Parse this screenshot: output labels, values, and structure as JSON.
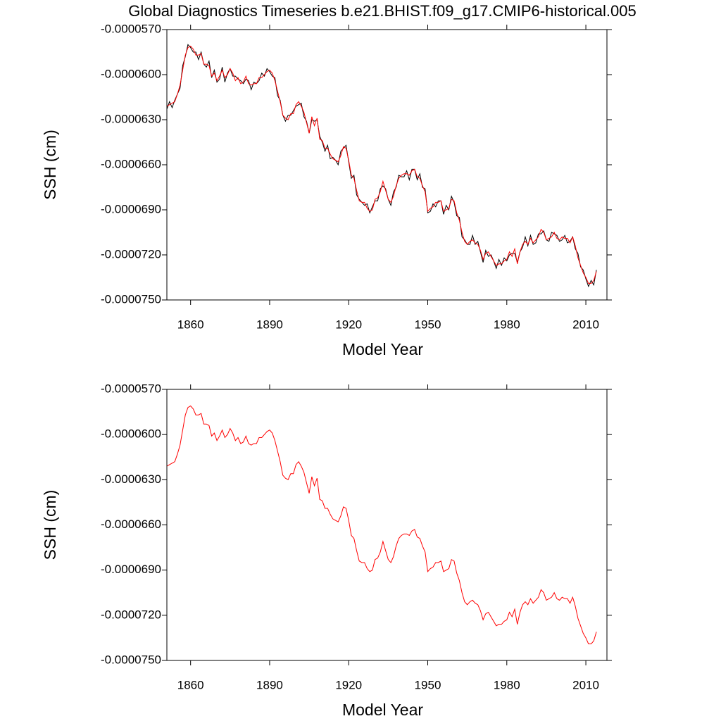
{
  "chart_data": [
    {
      "type": "line",
      "title": "Global Diagnostics Timeseries b.e21.BHIST.f09_g17.CMIP6-historical.005",
      "xlabel": "Model Year",
      "ylabel": "SSH (cm)",
      "xlim": [
        1851,
        2018
      ],
      "xticks": [
        1860,
        1890,
        1920,
        1950,
        1980,
        2010
      ],
      "ylim": [
        -7.5e-05,
        -5.7e-05
      ],
      "yticks": [
        {
          "value": -7.5e-05,
          "label": "-0.0000750"
        },
        {
          "value": -7.2e-05,
          "label": "-0.0000720"
        },
        {
          "value": -6.9e-05,
          "label": "-0.0000690"
        },
        {
          "value": -6.6e-05,
          "label": "-0.0000660"
        },
        {
          "value": -6.3e-05,
          "label": "-0.0000630"
        },
        {
          "value": -6e-05,
          "label": "-0.0000600"
        },
        {
          "value": -5.7e-05,
          "label": "-0.0000570"
        }
      ],
      "x": [
        1851,
        1852,
        1853,
        1854,
        1855,
        1856,
        1857,
        1858,
        1859,
        1860,
        1861,
        1862,
        1863,
        1864,
        1865,
        1866,
        1867,
        1868,
        1869,
        1870,
        1871,
        1872,
        1873,
        1874,
        1875,
        1876,
        1877,
        1878,
        1879,
        1880,
        1881,
        1882,
        1883,
        1884,
        1885,
        1886,
        1887,
        1888,
        1889,
        1890,
        1891,
        1892,
        1893,
        1894,
        1895,
        1896,
        1897,
        1898,
        1899,
        1900,
        1901,
        1902,
        1903,
        1904,
        1905,
        1906,
        1907,
        1908,
        1909,
        1910,
        1911,
        1912,
        1913,
        1914,
        1915,
        1916,
        1917,
        1918,
        1919,
        1920,
        1921,
        1922,
        1923,
        1924,
        1925,
        1926,
        1927,
        1928,
        1929,
        1930,
        1931,
        1932,
        1933,
        1934,
        1935,
        1936,
        1937,
        1938,
        1939,
        1940,
        1941,
        1942,
        1943,
        1944,
        1945,
        1946,
        1947,
        1948,
        1949,
        1950,
        1951,
        1952,
        1953,
        1954,
        1955,
        1956,
        1957,
        1958,
        1959,
        1960,
        1961,
        1962,
        1963,
        1964,
        1965,
        1966,
        1967,
        1968,
        1969,
        1970,
        1971,
        1972,
        1973,
        1974,
        1975,
        1976,
        1977,
        1978,
        1979,
        1980,
        1981,
        1982,
        1983,
        1984,
        1985,
        1986,
        1987,
        1988,
        1989,
        1990,
        1991,
        1992,
        1993,
        1994,
        1995,
        1996,
        1997,
        1998,
        1999,
        2000,
        2001,
        2002,
        2003,
        2004,
        2005,
        2006,
        2007,
        2008,
        2009,
        2010,
        2011,
        2012,
        2013,
        2014
      ],
      "series": [
        {
          "color": "#000000",
          "values": [
            -6.23e-05,
            -6.18e-05,
            -6.22e-05,
            -6.17e-05,
            -6.13e-05,
            -6.09e-05,
            -5.94e-05,
            -5.88e-05,
            -5.8e-05,
            -5.82e-05,
            -5.85e-05,
            -5.85e-05,
            -5.9e-05,
            -5.85e-05,
            -5.93e-05,
            -5.95e-05,
            -5.91e-05,
            -6.02e-05,
            -5.97e-05,
            -6.05e-05,
            -6.03e-05,
            -5.95e-05,
            -6.05e-05,
            -5.99e-05,
            -5.96e-05,
            -6.01e-05,
            -6.01e-05,
            -6.03e-05,
            -6.04e-05,
            -6.06e-05,
            -6.03e-05,
            -6.04e-05,
            -6.1e-05,
            -6.05e-05,
            -6.06e-05,
            -6.04e-05,
            -5.99e-05,
            -6.01e-05,
            -5.96e-05,
            -5.98e-05,
            -6.01e-05,
            -6.02e-05,
            -6.14e-05,
            -6.17e-05,
            -6.27e-05,
            -6.31e-05,
            -6.27e-05,
            -6.27e-05,
            -6.24e-05,
            -6.21e-05,
            -6.2e-05,
            -6.19e-05,
            -6.28e-05,
            -6.31e-05,
            -6.39e-05,
            -6.3e-05,
            -6.31e-05,
            -6.3e-05,
            -6.41e-05,
            -6.45e-05,
            -6.51e-05,
            -6.47e-05,
            -6.56e-05,
            -6.55e-05,
            -6.57e-05,
            -6.6e-05,
            -6.51e-05,
            -6.49e-05,
            -6.47e-05,
            -6.58e-05,
            -6.69e-05,
            -6.67e-05,
            -6.8e-05,
            -6.83e-05,
            -6.85e-05,
            -6.87e-05,
            -6.86e-05,
            -6.92e-05,
            -6.88e-05,
            -6.84e-05,
            -6.84e-05,
            -6.76e-05,
            -6.74e-05,
            -6.76e-05,
            -6.83e-05,
            -6.87e-05,
            -6.78e-05,
            -6.75e-05,
            -6.67e-05,
            -6.68e-05,
            -6.68e-05,
            -6.64e-05,
            -6.7e-05,
            -6.63e-05,
            -6.63e-05,
            -6.7e-05,
            -6.66e-05,
            -6.75e-05,
            -6.76e-05,
            -6.92e-05,
            -6.91e-05,
            -6.86e-05,
            -6.88e-05,
            -6.84e-05,
            -6.84e-05,
            -6.93e-05,
            -6.87e-05,
            -6.9e-05,
            -6.81e-05,
            -6.85e-05,
            -6.94e-05,
            -6.95e-05,
            -7.08e-05,
            -7.1e-05,
            -7.13e-05,
            -7.13e-05,
            -7.07e-05,
            -7.13e-05,
            -7.11e-05,
            -7.18e-05,
            -7.25e-05,
            -7.17e-05,
            -7.21e-05,
            -7.2e-05,
            -7.24e-05,
            -7.29e-05,
            -7.23e-05,
            -7.27e-05,
            -7.22e-05,
            -7.24e-05,
            -7.2e-05,
            -7.19e-05,
            -7.19e-05,
            -7.25e-05,
            -7.18e-05,
            -7.15e-05,
            -7.08e-05,
            -7.14e-05,
            -7.07e-05,
            -7.13e-05,
            -7.12e-05,
            -7.06e-05,
            -7.06e-05,
            -7.04e-05,
            -7.1e-05,
            -7.11e-05,
            -7.05e-05,
            -7.06e-05,
            -7.07e-05,
            -7.11e-05,
            -7.1e-05,
            -7.07e-05,
            -7.12e-05,
            -7.11e-05,
            -7.08e-05,
            -7.16e-05,
            -7.19e-05,
            -7.28e-05,
            -7.3e-05,
            -7.36e-05,
            -7.41e-05,
            -7.37e-05,
            -7.4e-05,
            -7.3e-05
          ]
        },
        {
          "color": "#ff0000",
          "values": [
            -6.21e-05,
            -6.2e-05,
            -6.19e-05,
            -6.18e-05,
            -6.13e-05,
            -6.07e-05,
            -5.97e-05,
            -5.87e-05,
            -5.82e-05,
            -5.81e-05,
            -5.83e-05,
            -5.87e-05,
            -5.87e-05,
            -5.86e-05,
            -5.93e-05,
            -5.93e-05,
            -5.94e-05,
            -6.01e-05,
            -5.99e-05,
            -6.04e-05,
            -6.01e-05,
            -5.97e-05,
            -6.02e-05,
            -6e-05,
            -5.96e-05,
            -5.99e-05,
            -6.04e-05,
            -6.02e-05,
            -6.06e-05,
            -6.05e-05,
            -6.01e-05,
            -6.06e-05,
            -6.07e-05,
            -6.06e-05,
            -6.06e-05,
            -6.02e-05,
            -6.02e-05,
            -6e-05,
            -5.98e-05,
            -5.97e-05,
            -5.99e-05,
            -6.04e-05,
            -6.11e-05,
            -6.18e-05,
            -6.27e-05,
            -6.29e-05,
            -6.3e-05,
            -6.26e-05,
            -6.26e-05,
            -6.2e-05,
            -6.18e-05,
            -6.21e-05,
            -6.25e-05,
            -6.32e-05,
            -6.39e-05,
            -6.28e-05,
            -6.34e-05,
            -6.29e-05,
            -6.43e-05,
            -6.44e-05,
            -6.49e-05,
            -6.49e-05,
            -6.53e-05,
            -6.56e-05,
            -6.57e-05,
            -6.58e-05,
            -6.54e-05,
            -6.48e-05,
            -6.49e-05,
            -6.57e-05,
            -6.67e-05,
            -6.69e-05,
            -6.77e-05,
            -6.84e-05,
            -6.85e-05,
            -6.85e-05,
            -6.89e-05,
            -6.91e-05,
            -6.9e-05,
            -6.83e-05,
            -6.82e-05,
            -6.78e-05,
            -6.71e-05,
            -6.77e-05,
            -6.83e-05,
            -6.85e-05,
            -6.81e-05,
            -6.74e-05,
            -6.69e-05,
            -6.67e-05,
            -6.66e-05,
            -6.66e-05,
            -6.67e-05,
            -6.64e-05,
            -6.63e-05,
            -6.68e-05,
            -6.69e-05,
            -6.74e-05,
            -6.78e-05,
            -6.91e-05,
            -6.89e-05,
            -6.88e-05,
            -6.85e-05,
            -6.85e-05,
            -6.84e-05,
            -6.91e-05,
            -6.9e-05,
            -6.89e-05,
            -6.83e-05,
            -6.84e-05,
            -6.92e-05,
            -6.97e-05,
            -7.05e-05,
            -7.11e-05,
            -7.13e-05,
            -7.11e-05,
            -7.1e-05,
            -7.12e-05,
            -7.13e-05,
            -7.17e-05,
            -7.23e-05,
            -7.19e-05,
            -7.18e-05,
            -7.21e-05,
            -7.24e-05,
            -7.27e-05,
            -7.26e-05,
            -7.26e-05,
            -7.24e-05,
            -7.23e-05,
            -7.18e-05,
            -7.21e-05,
            -7.16e-05,
            -7.26e-05,
            -7.18e-05,
            -7.13e-05,
            -7.11e-05,
            -7.13e-05,
            -7.09e-05,
            -7.12e-05,
            -7.1e-05,
            -7.08e-05,
            -7.03e-05,
            -7.05e-05,
            -7.1e-05,
            -7.09e-05,
            -7.08e-05,
            -7.05e-05,
            -7.09e-05,
            -7.1e-05,
            -7.08e-05,
            -7.09e-05,
            -7.09e-05,
            -7.12e-05,
            -7.08e-05,
            -7.14e-05,
            -7.22e-05,
            -7.27e-05,
            -7.32e-05,
            -7.35e-05,
            -7.39e-05,
            -7.39e-05,
            -7.37e-05,
            -7.31e-05
          ]
        }
      ]
    },
    {
      "type": "line",
      "xlabel": "Model Year",
      "ylabel": "SSH (cm)",
      "xlim": [
        1851,
        2018
      ],
      "xticks": [
        1860,
        1890,
        1920,
        1950,
        1980,
        2010
      ],
      "ylim": [
        -7.5e-05,
        -5.7e-05
      ],
      "yticks": [
        {
          "value": -7.5e-05,
          "label": "-0.0000750"
        },
        {
          "value": -7.2e-05,
          "label": "-0.0000720"
        },
        {
          "value": -6.9e-05,
          "label": "-0.0000690"
        },
        {
          "value": -6.6e-05,
          "label": "-0.0000660"
        },
        {
          "value": -6.3e-05,
          "label": "-0.0000630"
        },
        {
          "value": -6e-05,
          "label": "-0.0000600"
        },
        {
          "value": -5.7e-05,
          "label": "-0.0000570"
        }
      ],
      "x": [
        1851,
        1852,
        1853,
        1854,
        1855,
        1856,
        1857,
        1858,
        1859,
        1860,
        1861,
        1862,
        1863,
        1864,
        1865,
        1866,
        1867,
        1868,
        1869,
        1870,
        1871,
        1872,
        1873,
        1874,
        1875,
        1876,
        1877,
        1878,
        1879,
        1880,
        1881,
        1882,
        1883,
        1884,
        1885,
        1886,
        1887,
        1888,
        1889,
        1890,
        1891,
        1892,
        1893,
        1894,
        1895,
        1896,
        1897,
        1898,
        1899,
        1900,
        1901,
        1902,
        1903,
        1904,
        1905,
        1906,
        1907,
        1908,
        1909,
        1910,
        1911,
        1912,
        1913,
        1914,
        1915,
        1916,
        1917,
        1918,
        1919,
        1920,
        1921,
        1922,
        1923,
        1924,
        1925,
        1926,
        1927,
        1928,
        1929,
        1930,
        1931,
        1932,
        1933,
        1934,
        1935,
        1936,
        1937,
        1938,
        1939,
        1940,
        1941,
        1942,
        1943,
        1944,
        1945,
        1946,
        1947,
        1948,
        1949,
        1950,
        1951,
        1952,
        1953,
        1954,
        1955,
        1956,
        1957,
        1958,
        1959,
        1960,
        1961,
        1962,
        1963,
        1964,
        1965,
        1966,
        1967,
        1968,
        1969,
        1970,
        1971,
        1972,
        1973,
        1974,
        1975,
        1976,
        1977,
        1978,
        1979,
        1980,
        1981,
        1982,
        1983,
        1984,
        1985,
        1986,
        1987,
        1988,
        1989,
        1990,
        1991,
        1992,
        1993,
        1994,
        1995,
        1996,
        1997,
        1998,
        1999,
        2000,
        2001,
        2002,
        2003,
        2004,
        2005,
        2006,
        2007,
        2008,
        2009,
        2010,
        2011,
        2012,
        2013,
        2014
      ],
      "series": [
        {
          "color": "#ff0000",
          "values": [
            -6.21e-05,
            -6.2e-05,
            -6.19e-05,
            -6.18e-05,
            -6.13e-05,
            -6.07e-05,
            -5.97e-05,
            -5.87e-05,
            -5.82e-05,
            -5.81e-05,
            -5.83e-05,
            -5.87e-05,
            -5.87e-05,
            -5.86e-05,
            -5.93e-05,
            -5.93e-05,
            -5.94e-05,
            -6.01e-05,
            -5.99e-05,
            -6.04e-05,
            -6.01e-05,
            -5.97e-05,
            -6.02e-05,
            -6e-05,
            -5.96e-05,
            -5.99e-05,
            -6.04e-05,
            -6.02e-05,
            -6.06e-05,
            -6.05e-05,
            -6.01e-05,
            -6.06e-05,
            -6.07e-05,
            -6.06e-05,
            -6.06e-05,
            -6.02e-05,
            -6.02e-05,
            -6e-05,
            -5.98e-05,
            -5.97e-05,
            -5.99e-05,
            -6.04e-05,
            -6.11e-05,
            -6.18e-05,
            -6.27e-05,
            -6.29e-05,
            -6.3e-05,
            -6.26e-05,
            -6.26e-05,
            -6.2e-05,
            -6.18e-05,
            -6.21e-05,
            -6.25e-05,
            -6.32e-05,
            -6.39e-05,
            -6.28e-05,
            -6.34e-05,
            -6.29e-05,
            -6.43e-05,
            -6.44e-05,
            -6.49e-05,
            -6.49e-05,
            -6.53e-05,
            -6.56e-05,
            -6.57e-05,
            -6.58e-05,
            -6.54e-05,
            -6.48e-05,
            -6.49e-05,
            -6.57e-05,
            -6.67e-05,
            -6.69e-05,
            -6.77e-05,
            -6.84e-05,
            -6.85e-05,
            -6.85e-05,
            -6.89e-05,
            -6.91e-05,
            -6.9e-05,
            -6.83e-05,
            -6.82e-05,
            -6.78e-05,
            -6.71e-05,
            -6.77e-05,
            -6.83e-05,
            -6.85e-05,
            -6.81e-05,
            -6.74e-05,
            -6.69e-05,
            -6.67e-05,
            -6.66e-05,
            -6.66e-05,
            -6.67e-05,
            -6.64e-05,
            -6.63e-05,
            -6.68e-05,
            -6.69e-05,
            -6.74e-05,
            -6.78e-05,
            -6.91e-05,
            -6.89e-05,
            -6.88e-05,
            -6.85e-05,
            -6.85e-05,
            -6.84e-05,
            -6.91e-05,
            -6.9e-05,
            -6.89e-05,
            -6.83e-05,
            -6.84e-05,
            -6.92e-05,
            -6.97e-05,
            -7.05e-05,
            -7.11e-05,
            -7.13e-05,
            -7.11e-05,
            -7.1e-05,
            -7.12e-05,
            -7.13e-05,
            -7.17e-05,
            -7.23e-05,
            -7.19e-05,
            -7.18e-05,
            -7.21e-05,
            -7.24e-05,
            -7.27e-05,
            -7.26e-05,
            -7.26e-05,
            -7.24e-05,
            -7.23e-05,
            -7.18e-05,
            -7.21e-05,
            -7.16e-05,
            -7.26e-05,
            -7.18e-05,
            -7.13e-05,
            -7.11e-05,
            -7.13e-05,
            -7.09e-05,
            -7.12e-05,
            -7.1e-05,
            -7.08e-05,
            -7.03e-05,
            -7.05e-05,
            -7.1e-05,
            -7.09e-05,
            -7.08e-05,
            -7.05e-05,
            -7.09e-05,
            -7.1e-05,
            -7.08e-05,
            -7.09e-05,
            -7.09e-05,
            -7.12e-05,
            -7.08e-05,
            -7.14e-05,
            -7.22e-05,
            -7.27e-05,
            -7.32e-05,
            -7.35e-05,
            -7.39e-05,
            -7.39e-05,
            -7.37e-05,
            -7.31e-05
          ]
        }
      ]
    }
  ]
}
